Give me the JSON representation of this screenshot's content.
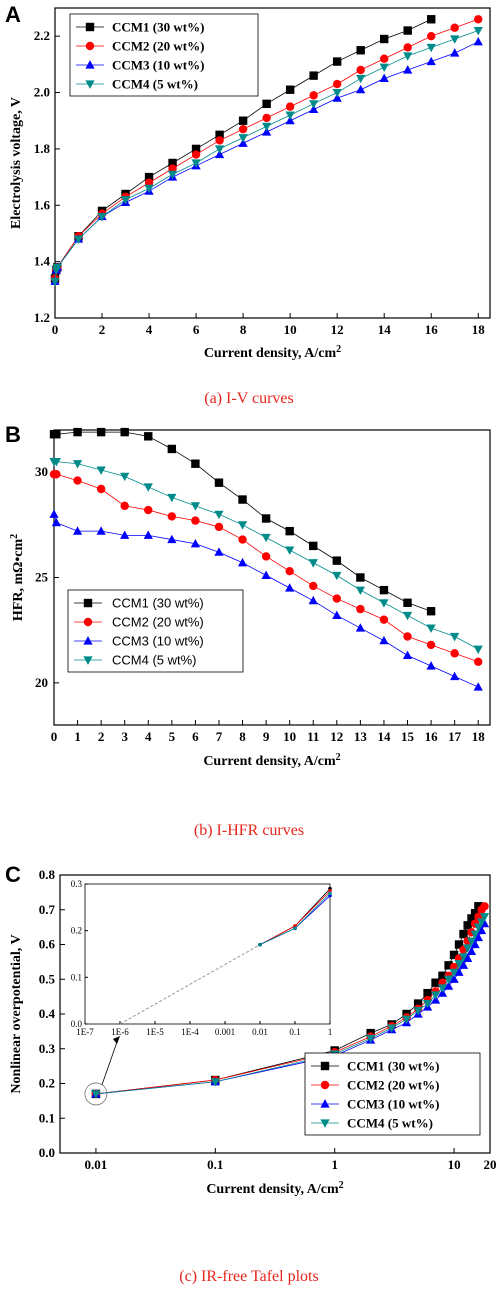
{
  "figure": {
    "captions": [
      "(a) I-V curves",
      "(b) I-HFR curves",
      "(c) IR-free Tafel plots"
    ]
  },
  "chart_data": [
    {
      "panel": "A",
      "type": "line",
      "xlabel": "Current density, A/cm²",
      "ylabel": "Electrolysis voltage, V",
      "xlim": [
        0,
        18.5
      ],
      "ylim": [
        1.2,
        2.3
      ],
      "xticks": [
        0,
        2,
        4,
        6,
        8,
        10,
        12,
        14,
        16,
        18
      ],
      "yticks": [
        1.2,
        1.4,
        1.6,
        1.8,
        2.0,
        2.2
      ],
      "legend_position": "top-left",
      "series": [
        {
          "name": "CCM1 (30 wt%)",
          "color": "#000000",
          "marker": "square",
          "x": [
            0,
            0.05,
            0.1,
            1,
            2,
            3,
            4,
            5,
            6,
            7,
            8,
            9,
            10,
            11,
            12,
            13,
            14,
            15,
            16
          ],
          "y": [
            1.34,
            1.37,
            1.38,
            1.49,
            1.58,
            1.64,
            1.7,
            1.75,
            1.8,
            1.85,
            1.9,
            1.96,
            2.01,
            2.06,
            2.11,
            2.15,
            2.19,
            2.22,
            2.26
          ]
        },
        {
          "name": "CCM2 (20 wt%)",
          "color": "#ff0000",
          "marker": "circle",
          "x": [
            0,
            0.05,
            0.1,
            1,
            2,
            3,
            4,
            5,
            6,
            7,
            8,
            9,
            10,
            11,
            12,
            13,
            14,
            15,
            16,
            17,
            18
          ],
          "y": [
            1.34,
            1.37,
            1.38,
            1.49,
            1.57,
            1.63,
            1.68,
            1.73,
            1.78,
            1.83,
            1.87,
            1.91,
            1.95,
            1.99,
            2.03,
            2.08,
            2.12,
            2.16,
            2.2,
            2.23,
            2.26
          ]
        },
        {
          "name": "CCM3 (10 wt%)",
          "color": "#0000ff",
          "marker": "triangle-up",
          "x": [
            0,
            0.05,
            0.1,
            1,
            2,
            3,
            4,
            5,
            6,
            7,
            8,
            9,
            10,
            11,
            12,
            13,
            14,
            15,
            16,
            17,
            18
          ],
          "y": [
            1.33,
            1.37,
            1.38,
            1.48,
            1.56,
            1.61,
            1.65,
            1.7,
            1.74,
            1.78,
            1.82,
            1.86,
            1.9,
            1.94,
            1.98,
            2.01,
            2.05,
            2.08,
            2.11,
            2.14,
            2.18
          ]
        },
        {
          "name": "CCM4 (5 wt%)",
          "color": "#008b8b",
          "marker": "triangle-down",
          "x": [
            0,
            0.05,
            0.1,
            1,
            2,
            3,
            4,
            5,
            6,
            7,
            8,
            9,
            10,
            11,
            12,
            13,
            14,
            15,
            16,
            17,
            18
          ],
          "y": [
            1.33,
            1.37,
            1.38,
            1.48,
            1.56,
            1.62,
            1.66,
            1.71,
            1.75,
            1.8,
            1.84,
            1.88,
            1.92,
            1.96,
            2.0,
            2.05,
            2.09,
            2.13,
            2.16,
            2.19,
            2.22
          ]
        }
      ]
    },
    {
      "panel": "B",
      "type": "line",
      "xlabel": "Current density, A/cm²",
      "ylabel": "HFR, mΩ•cm²",
      "xlim": [
        0,
        18.5
      ],
      "ylim": [
        18,
        32
      ],
      "xticks": [
        0,
        1,
        2,
        3,
        4,
        5,
        6,
        7,
        8,
        9,
        10,
        11,
        12,
        13,
        14,
        15,
        16,
        17,
        18
      ],
      "yticks": [
        20,
        25,
        30
      ],
      "legend_position": "bottom-left",
      "series": [
        {
          "name": "CCM1 (30 wt%)",
          "color": "#000000",
          "marker": "square",
          "x": [
            0,
            0.1,
            1,
            2,
            3,
            4,
            5,
            6,
            7,
            8,
            9,
            10,
            11,
            12,
            13,
            14,
            15,
            16
          ],
          "y": [
            31.8,
            31.8,
            31.9,
            31.9,
            31.9,
            31.7,
            31.1,
            30.4,
            29.5,
            28.7,
            27.8,
            27.2,
            26.5,
            25.8,
            25.0,
            24.4,
            23.8,
            23.4
          ]
        },
        {
          "name": "CCM2 (20 wt%)",
          "color": "#ff0000",
          "marker": "circle",
          "x": [
            0,
            0.1,
            1,
            2,
            3,
            4,
            5,
            6,
            7,
            8,
            9,
            10,
            11,
            12,
            13,
            14,
            15,
            16,
            17,
            18
          ],
          "y": [
            29.9,
            29.9,
            29.6,
            29.2,
            28.4,
            28.2,
            27.9,
            27.7,
            27.4,
            26.8,
            26.0,
            25.3,
            24.6,
            24.0,
            23.5,
            23.0,
            22.2,
            21.8,
            21.4,
            21.0
          ]
        },
        {
          "name": "CCM3 (10 wt%)",
          "color": "#0000ff",
          "marker": "triangle-up",
          "x": [
            0,
            0.1,
            1,
            2,
            3,
            4,
            5,
            6,
            7,
            8,
            9,
            10,
            11,
            12,
            13,
            14,
            15,
            16,
            17,
            18
          ],
          "y": [
            28.0,
            27.6,
            27.2,
            27.2,
            27.0,
            27.0,
            26.8,
            26.6,
            26.2,
            25.7,
            25.1,
            24.5,
            23.9,
            23.2,
            22.6,
            22.0,
            21.3,
            20.8,
            20.3,
            19.8
          ]
        },
        {
          "name": "CCM4 (5 wt%)",
          "color": "#008b8b",
          "marker": "triangle-down",
          "x": [
            0,
            0.1,
            1,
            2,
            3,
            4,
            5,
            6,
            7,
            8,
            9,
            10,
            11,
            12,
            13,
            14,
            15,
            16,
            17,
            18
          ],
          "y": [
            30.5,
            30.5,
            30.4,
            30.1,
            29.8,
            29.3,
            28.8,
            28.4,
            28.0,
            27.5,
            26.9,
            26.3,
            25.7,
            25.1,
            24.4,
            23.8,
            23.2,
            22.6,
            22.2,
            21.6
          ]
        }
      ]
    },
    {
      "panel": "C",
      "type": "scatter",
      "xscale": "log",
      "xlabel": "Current density, A/cm²",
      "ylabel": "Nonlinear overpotential, V",
      "xlim": [
        0.005,
        20
      ],
      "ylim": [
        0,
        0.8
      ],
      "xticks": [
        "0.01",
        "0.1",
        "1",
        "10",
        "20"
      ],
      "yticks": [
        0.0,
        0.1,
        0.2,
        0.3,
        0.4,
        0.5,
        0.6,
        0.7,
        0.8
      ],
      "legend_position": "bottom-right",
      "series": [
        {
          "name": "CCM1 (30 wt%)",
          "color": "#000000",
          "marker": "square",
          "x": [
            0.01,
            0.1,
            1,
            2,
            3,
            4,
            5,
            6,
            7,
            8,
            9,
            10,
            11,
            12,
            13,
            14,
            15,
            16
          ],
          "y": [
            0.17,
            0.21,
            0.295,
            0.345,
            0.37,
            0.4,
            0.43,
            0.46,
            0.49,
            0.51,
            0.54,
            0.57,
            0.6,
            0.63,
            0.655,
            0.675,
            0.69,
            0.71
          ]
        },
        {
          "name": "CCM2 (20 wt%)",
          "color": "#ff0000",
          "marker": "circle",
          "x": [
            0.01,
            0.1,
            1,
            2,
            3,
            4,
            5,
            6,
            7,
            8,
            9,
            10,
            11,
            12,
            13,
            14,
            15,
            16,
            17,
            18
          ],
          "y": [
            0.17,
            0.21,
            0.29,
            0.335,
            0.365,
            0.39,
            0.415,
            0.44,
            0.465,
            0.49,
            0.51,
            0.535,
            0.56,
            0.585,
            0.61,
            0.635,
            0.66,
            0.68,
            0.7,
            0.71
          ]
        },
        {
          "name": "CCM3 (10 wt%)",
          "color": "#0000ff",
          "marker": "triangle-up",
          "x": [
            0.01,
            0.1,
            1,
            2,
            3,
            4,
            5,
            6,
            7,
            8,
            9,
            10,
            11,
            12,
            13,
            14,
            15,
            16,
            17,
            18
          ],
          "y": [
            0.17,
            0.205,
            0.28,
            0.325,
            0.355,
            0.375,
            0.4,
            0.42,
            0.44,
            0.46,
            0.48,
            0.5,
            0.52,
            0.54,
            0.56,
            0.58,
            0.6,
            0.62,
            0.64,
            0.66
          ]
        },
        {
          "name": "CCM4 (5 wt%)",
          "color": "#008b8b",
          "marker": "triangle-down",
          "x": [
            0.01,
            0.1,
            1,
            2,
            3,
            4,
            5,
            6,
            7,
            8,
            9,
            10,
            11,
            12,
            13,
            14,
            15,
            16,
            17,
            18
          ],
          "y": [
            0.17,
            0.205,
            0.285,
            0.33,
            0.36,
            0.385,
            0.41,
            0.43,
            0.455,
            0.475,
            0.5,
            0.52,
            0.545,
            0.565,
            0.59,
            0.61,
            0.63,
            0.65,
            0.665,
            0.68
          ]
        }
      ],
      "inset": {
        "xscale": "log",
        "xlim": [
          1e-07,
          1
        ],
        "ylim": [
          0,
          0.3
        ],
        "xticks": [
          "1E-7",
          "1E-6",
          "1E-5",
          "1E-4",
          "0.001",
          "0.01",
          "0.1",
          "1"
        ],
        "yticks": [
          0.0,
          0.1,
          0.2,
          0.3
        ],
        "series": [
          {
            "name": "CCM1 (30 wt%)",
            "color": "#000000",
            "x": [
              0.01,
              0.1,
              1
            ],
            "y": [
              0.17,
              0.21,
              0.29
            ]
          },
          {
            "name": "CCM2 (20 wt%)",
            "color": "#ff0000",
            "x": [
              0.01,
              0.1,
              1
            ],
            "y": [
              0.17,
              0.21,
              0.285
            ]
          },
          {
            "name": "CCM3 (10 wt%)",
            "color": "#0000ff",
            "x": [
              0.01,
              0.1,
              1
            ],
            "y": [
              0.17,
              0.205,
              0.275
            ]
          },
          {
            "name": "CCM4 (5 wt%)",
            "color": "#008b8b",
            "x": [
              0.01,
              0.1,
              1
            ],
            "y": [
              0.17,
              0.205,
              0.28
            ]
          }
        ],
        "extrapolation": {
          "x": [
            1e-06,
            0.01
          ],
          "y": [
            0.0,
            0.17
          ]
        }
      }
    }
  ]
}
